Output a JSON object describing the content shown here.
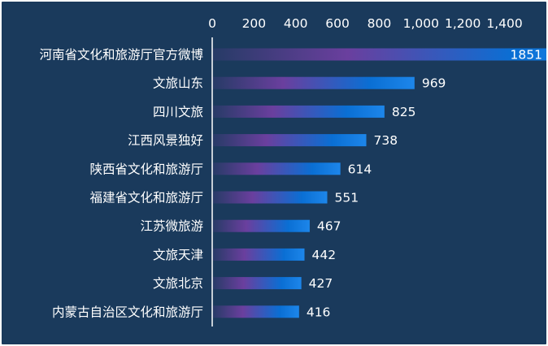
{
  "chart_data": {
    "type": "bar",
    "orientation": "horizontal",
    "categories": [
      "河南省文化和旅游厅官方微博",
      "文旅山东",
      "四川文旅",
      "江西风景独好",
      "陕西省文化和旅游厅",
      "福建省文化和旅游厅",
      "江苏微旅游",
      "文旅天津",
      "文旅北京",
      "内蒙古自治区文化和旅游厅"
    ],
    "values": [
      1851,
      969,
      825,
      738,
      614,
      551,
      467,
      442,
      427,
      416
    ],
    "value_labels": [
      "1851",
      "969",
      "825",
      "738",
      "614",
      "551",
      "467",
      "442",
      "427",
      "416"
    ],
    "x_ticks": [
      0,
      200,
      400,
      600,
      800,
      1000,
      1200,
      1400
    ],
    "x_tick_labels": [
      "0",
      "200",
      "400",
      "600",
      "800",
      "1,000",
      "1,200",
      "1,400"
    ],
    "xlim": [
      0,
      1400
    ],
    "x_axis_position": "top",
    "title": "",
    "xlabel": "",
    "ylabel": "",
    "grid": false,
    "legend": "none",
    "colors": {
      "background": "#1a3a5c",
      "bar_start": "#6a3f9e",
      "bar_end": "#0a6fd4",
      "bar_end_highlight": "#1d86ea",
      "text": "#ffffff",
      "axis_line": "#ffffff"
    }
  }
}
